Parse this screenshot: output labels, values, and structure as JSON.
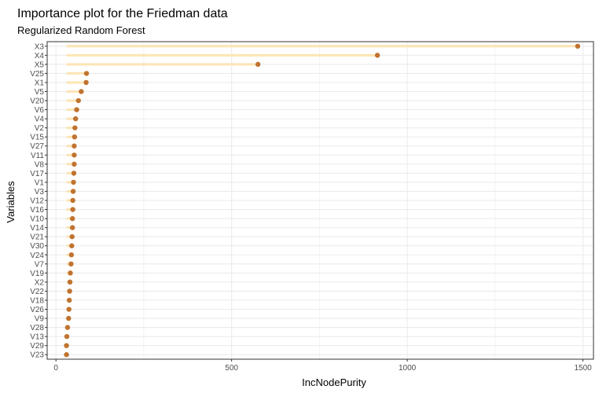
{
  "chart_data": {
    "type": "lollipop",
    "title": "Importance plot for the Friedman data",
    "subtitle": "Regularized Random Forest",
    "xlabel": "IncNodePurity",
    "ylabel": "Variables",
    "xlim": [
      -25,
      1530
    ],
    "xticks": [
      0,
      500,
      1000,
      1500
    ],
    "baseline": 30,
    "grid": true,
    "panel_border": true,
    "colors": {
      "point": "#c0732f",
      "stick": "#fce4b4",
      "grid": "#ebebeb",
      "border": "#333333"
    },
    "categories": [
      "X3",
      "X4",
      "X5",
      "V25",
      "X1",
      "V5",
      "V20",
      "V6",
      "V4",
      "V2",
      "V15",
      "V27",
      "V11",
      "V8",
      "V17",
      "V1",
      "V3",
      "V12",
      "V16",
      "V10",
      "V14",
      "V21",
      "V30",
      "V24",
      "V7",
      "V19",
      "X2",
      "V22",
      "V18",
      "V26",
      "V9",
      "V28",
      "V13",
      "V29",
      "V23"
    ],
    "values": [
      1485,
      915,
      575,
      87,
      86,
      72,
      64,
      59,
      56,
      54,
      53,
      52,
      52,
      52,
      51,
      50,
      49,
      48,
      48,
      47,
      47,
      46,
      45,
      44,
      43,
      41,
      40,
      39,
      38,
      37,
      36,
      33,
      31,
      30,
      30
    ]
  }
}
